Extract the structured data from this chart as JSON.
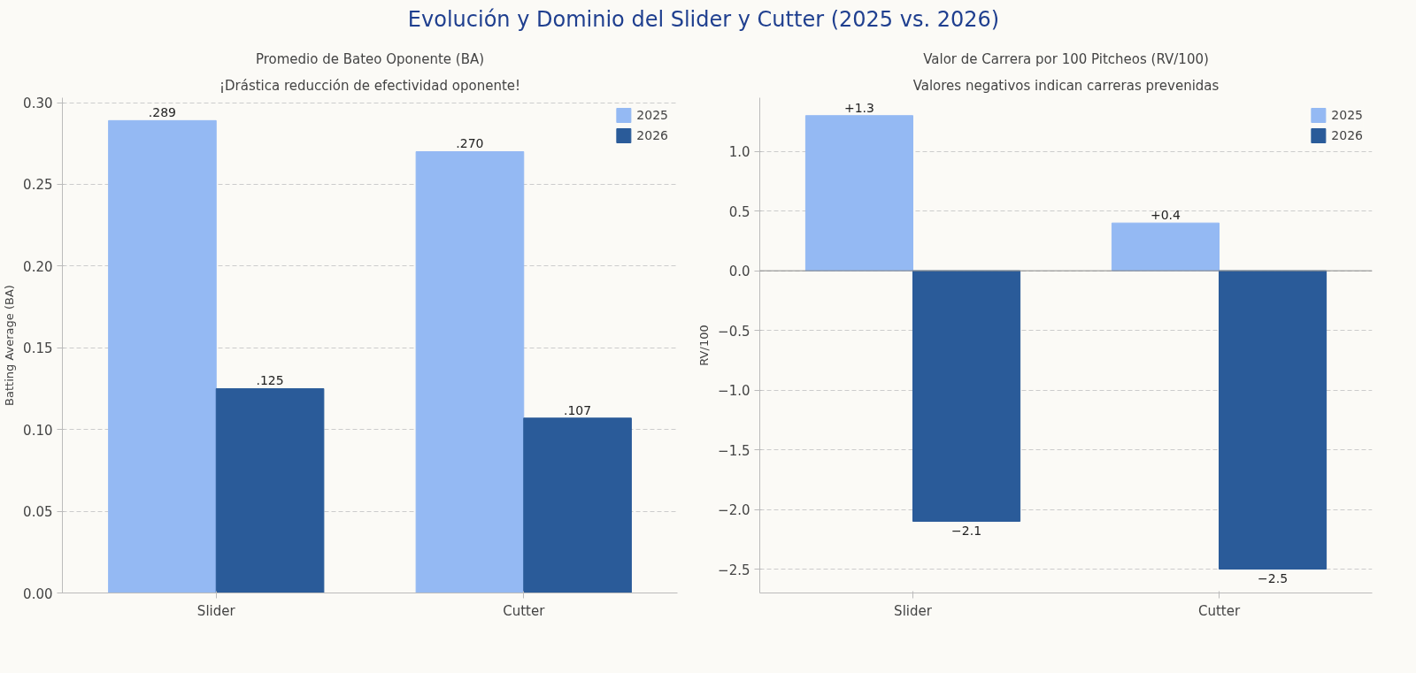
{
  "chart_data": [
    {
      "type": "bar",
      "title": "Promedio de Bateo Oponente (BA)",
      "subtitle": "¡Drástica reducción de efectividad oponente!",
      "ylabel": "Batting Average (BA)",
      "annotations": [
        "Evolución y Dominio del Slider y Cutter (2025 vs. 2026)"
      ],
      "categories": [
        "Slider",
        "Cutter"
      ],
      "series": [
        {
          "name": "2025",
          "color": "#94b9f3",
          "values": [
            0.289,
            0.27
          ],
          "value_labels": [
            ".289",
            ".270"
          ]
        },
        {
          "name": "2026",
          "color": "#2a5b99",
          "values": [
            0.125,
            0.107
          ],
          "value_labels": [
            ".125",
            ".107"
          ]
        }
      ],
      "ylim": [
        0,
        0.303
      ],
      "yticks": [
        {
          "value": 0,
          "label": "0.00"
        },
        0.05,
        {
          "value": 0.1,
          "label": "0.10"
        },
        0.15,
        {
          "value": 0.2,
          "label": "0.20"
        },
        0.25,
        {
          "value": 0.3,
          "label": "0.30"
        }
      ],
      "grid": "y",
      "legend": "top right"
    },
    {
      "type": "bar",
      "title": "Valor de Carrera por 100 Pitcheos (RV/100)",
      "subtitle": "Valores negativos indican carreras prevenidas",
      "ylabel": "RV/100",
      "categories": [
        "Slider",
        "Cutter"
      ],
      "series": [
        {
          "name": "2025",
          "color": "#94b9f3",
          "values": [
            1.3,
            0.4
          ],
          "value_labels": [
            "+1.3",
            "+0.4"
          ]
        },
        {
          "name": "2026",
          "color": "#2a5b99",
          "values": [
            -2.1,
            -2.5
          ],
          "value_labels": [
            "−2.1",
            "−2.5"
          ]
        }
      ],
      "ylim": [
        -2.7,
        1.45
      ],
      "yticks": [
        {
          "value": -2.5,
          "label": "−2.5"
        },
        {
          "value": -2.0,
          "label": "−2.0"
        },
        {
          "value": -1.5,
          "label": "−1.5"
        },
        {
          "value": -1.0,
          "label": "−1.0"
        },
        {
          "value": -0.5,
          "label": "−0.5"
        },
        {
          "value": 0,
          "label": "0.0"
        },
        0.5,
        {
          "value": 1,
          "label": "1.0"
        }
      ],
      "ref_lines": [
        {
          "axis": "y",
          "value": 0,
          "color": "#888888"
        }
      ],
      "grid": "y",
      "legend": "top right"
    }
  ]
}
